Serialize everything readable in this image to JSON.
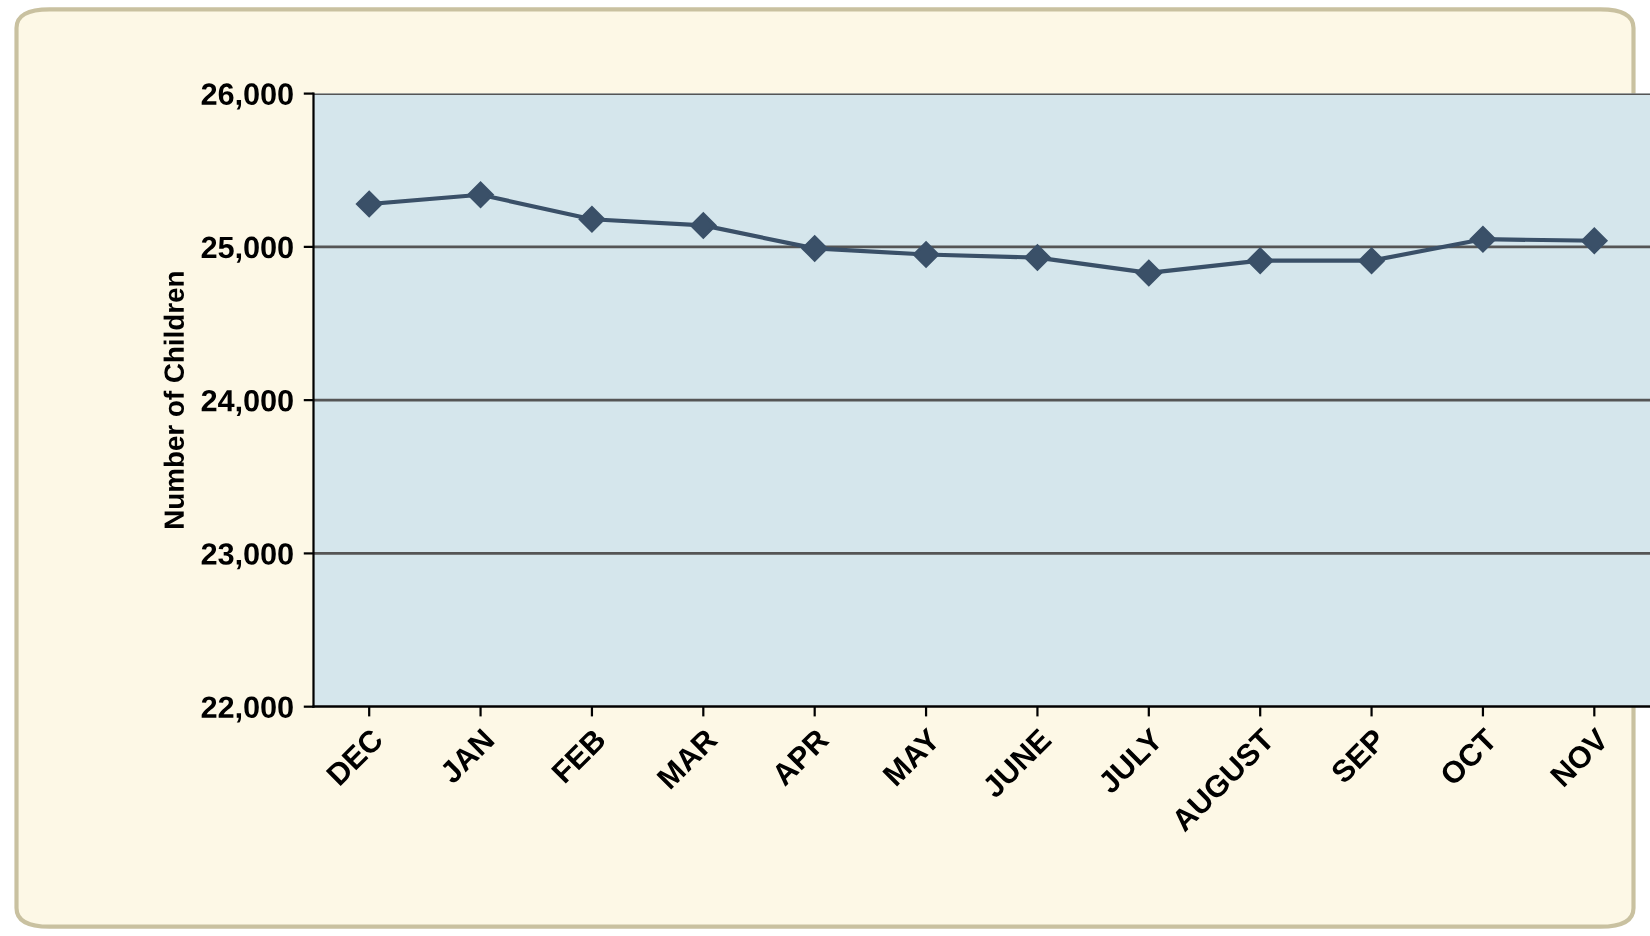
{
  "chart_data": {
    "type": "line",
    "ylabel": "Number of Children",
    "categories": [
      "DEC",
      "JAN",
      "FEB",
      "MAR",
      "APR",
      "MAY",
      "JUNE",
      "JULY",
      "AUGUST",
      "SEP",
      "OCT",
      "NOV"
    ],
    "series": [
      {
        "color": "#3a5068",
        "values": [
          25280,
          25340,
          25180,
          25140,
          24990,
          24950,
          24930,
          24830,
          24910,
          24910,
          25050,
          25040
        ]
      }
    ],
    "ylim": [
      22000,
      26000
    ],
    "yticks": [
      {
        "value": 22000,
        "label": "22,000"
      },
      {
        "value": 23000,
        "label": "23,000"
      },
      {
        "value": 24000,
        "label": "24,000"
      },
      {
        "value": 25000,
        "label": "25,000"
      },
      {
        "value": 26000,
        "label": "26,000"
      }
    ],
    "grid": "y",
    "marker": "diamond",
    "line_style": "solid"
  }
}
